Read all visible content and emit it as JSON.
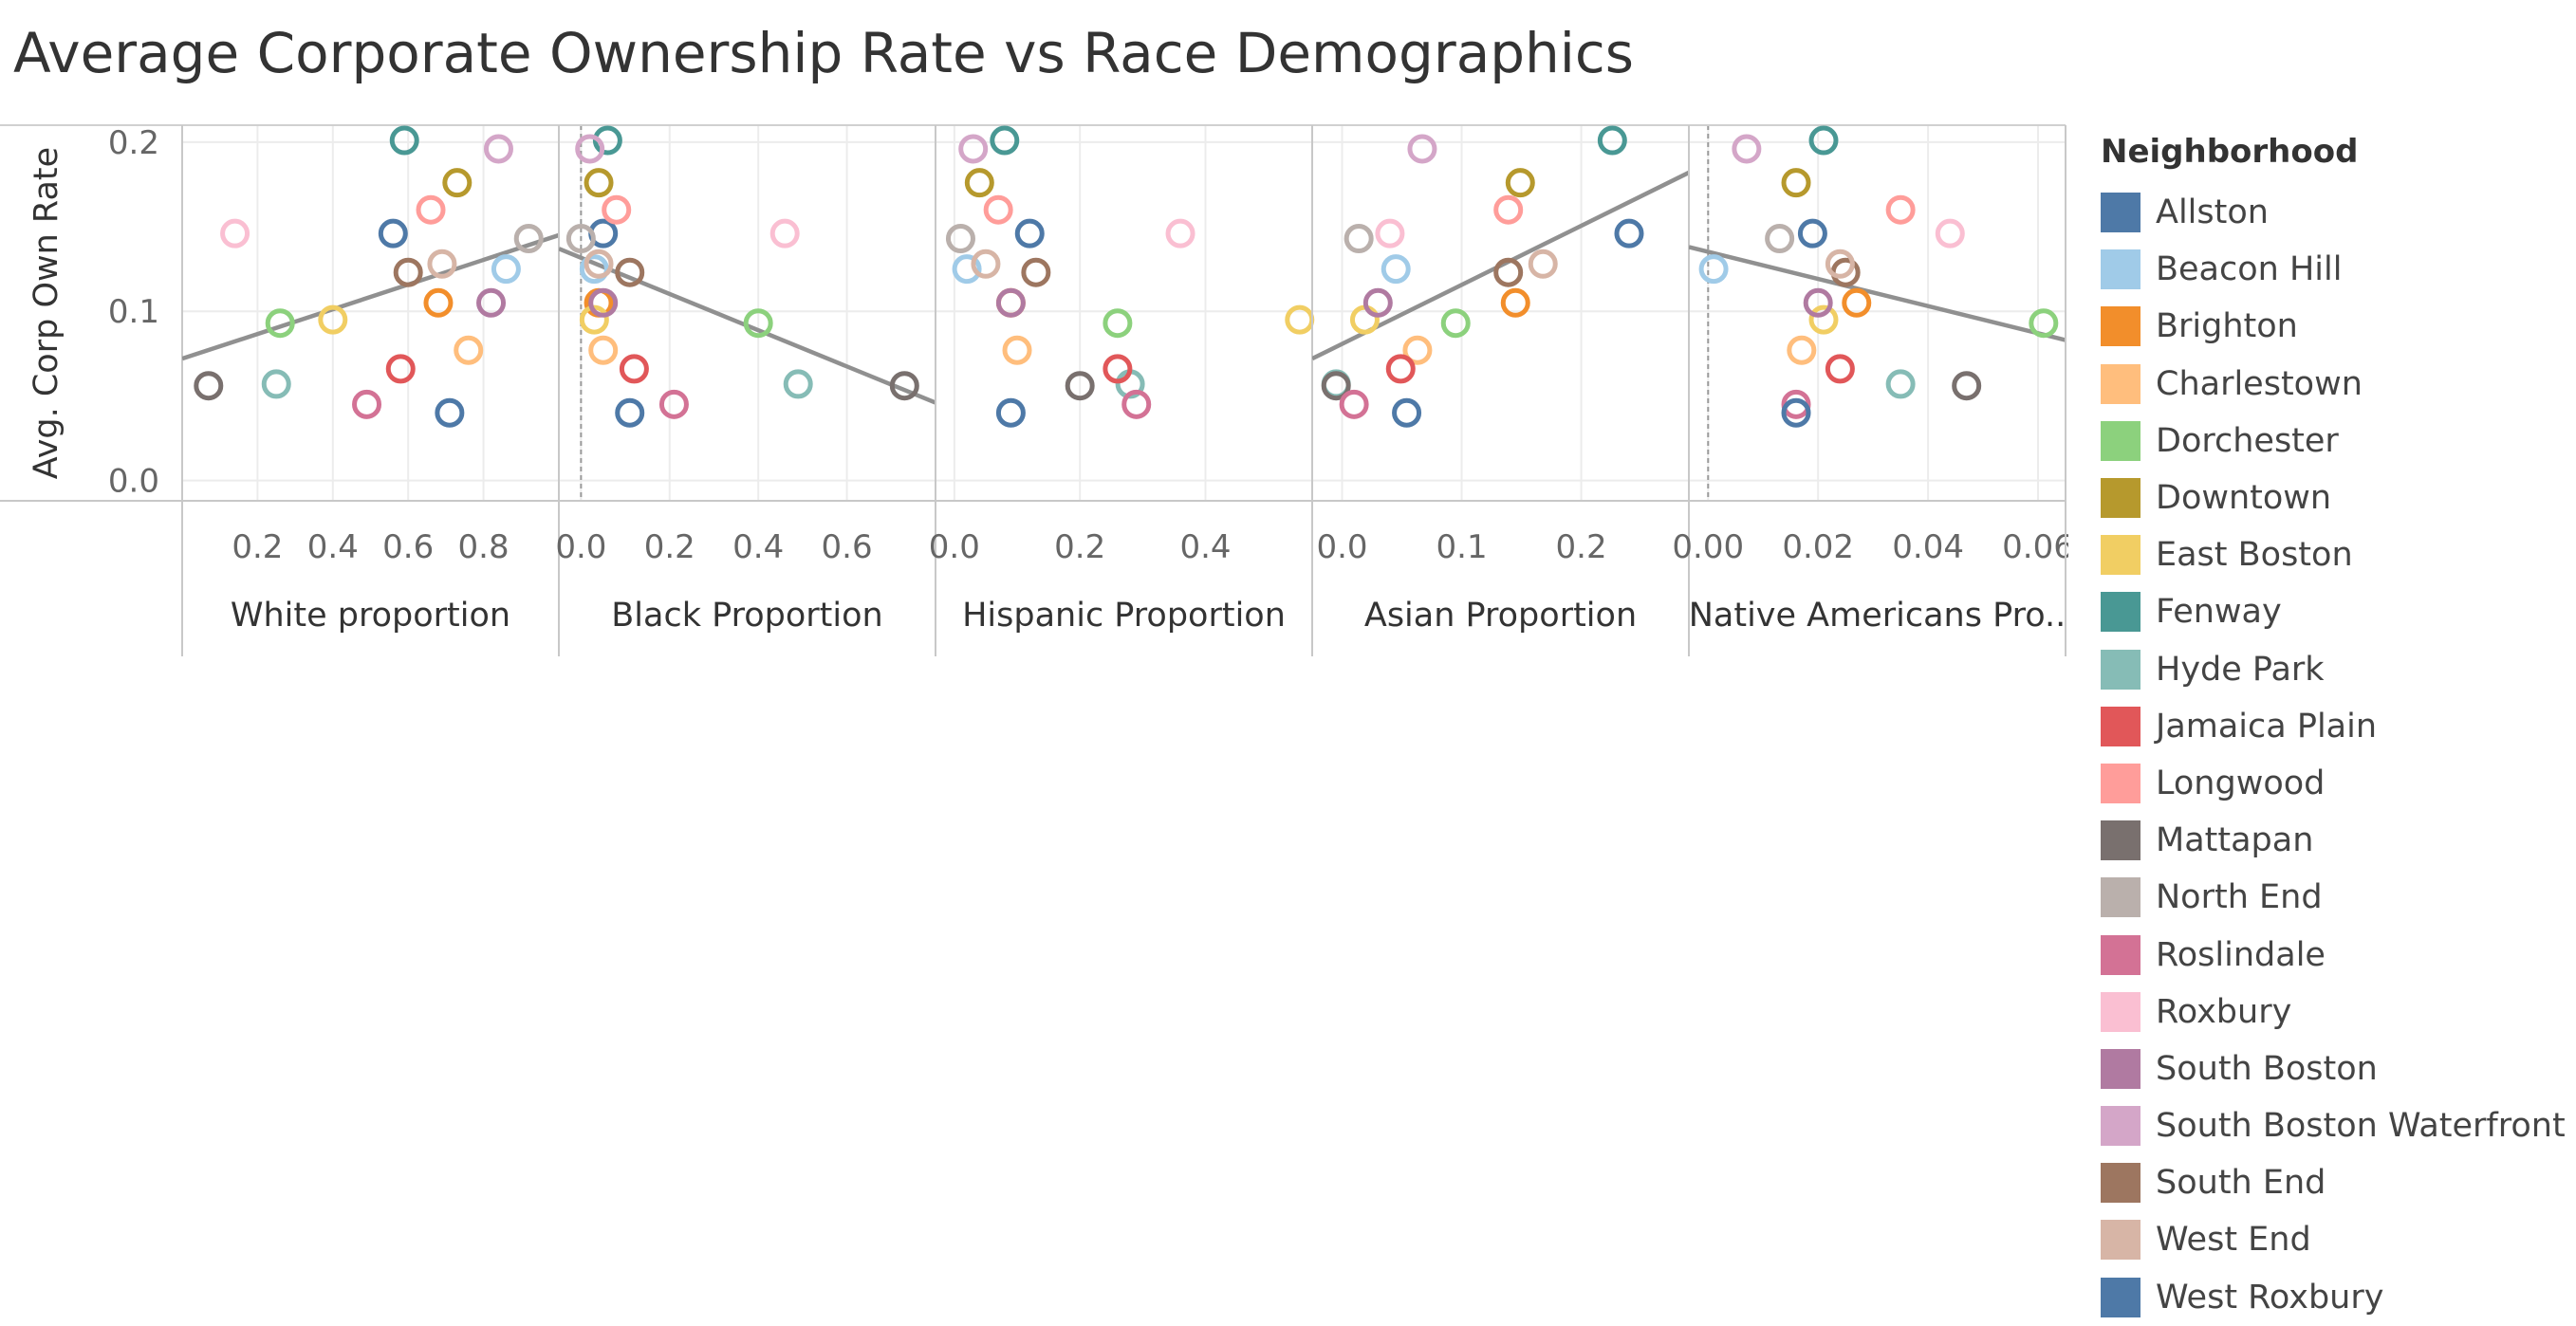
{
  "title": "Average Corporate Ownership Rate vs Race Demographics",
  "legend": {
    "title": "Neighborhood",
    "items": [
      {
        "label": "Allston",
        "color": "#4e79a7"
      },
      {
        "label": "Beacon Hill",
        "color": "#a0cbe8"
      },
      {
        "label": "Brighton",
        "color": "#f28e2b"
      },
      {
        "label": "Charlestown",
        "color": "#ffbe7d"
      },
      {
        "label": "Dorchester",
        "color": "#8cd17d"
      },
      {
        "label": "Downtown",
        "color": "#b6992d"
      },
      {
        "label": "East Boston",
        "color": "#f1ce63"
      },
      {
        "label": "Fenway",
        "color": "#499894"
      },
      {
        "label": "Hyde Park",
        "color": "#86bcb6"
      },
      {
        "label": "Jamaica Plain",
        "color": "#e15759"
      },
      {
        "label": "Longwood",
        "color": "#ff9d9a"
      },
      {
        "label": "Mattapan",
        "color": "#79706e"
      },
      {
        "label": "North End",
        "color": "#bab0ac"
      },
      {
        "label": "Roslindale",
        "color": "#d37295"
      },
      {
        "label": "Roxbury",
        "color": "#fabfd2"
      },
      {
        "label": "South Boston",
        "color": "#b07aa1"
      },
      {
        "label": "South Boston Waterfront",
        "color": "#d4a6c8"
      },
      {
        "label": "South End",
        "color": "#9d7660"
      },
      {
        "label": "West End",
        "color": "#d7b5a6"
      },
      {
        "label": "West Roxbury",
        "color": "#4e79a7"
      }
    ]
  },
  "chart_data": {
    "type": "scatter",
    "y_axis": {
      "label": "Avg. Corp Own Rate",
      "ticks": [
        "0.2",
        "0.1",
        "0.0"
      ],
      "tick_values": [
        0.2,
        0.1,
        0.0
      ],
      "ylim": [
        -0.012,
        0.21
      ]
    },
    "trend_lines": true,
    "panels": [
      {
        "xlabel": "White proportion",
        "xlim": [
          0.0,
          1.0
        ],
        "ticks": [
          "0.2",
          "0.4",
          "0.6",
          "0.8"
        ],
        "tick_values": [
          0.2,
          0.4,
          0.6,
          0.8
        ],
        "trend": [
          [
            0.0,
            0.072
          ],
          [
            1.0,
            0.145
          ]
        ],
        "points": [
          {
            "n": "Allston",
            "x": 0.56,
            "y": 0.146
          },
          {
            "n": "Beacon Hill",
            "x": 0.86,
            "y": 0.125
          },
          {
            "n": "Brighton",
            "x": 0.68,
            "y": 0.105
          },
          {
            "n": "Charlestown",
            "x": 0.76,
            "y": 0.077
          },
          {
            "n": "Dorchester",
            "x": 0.26,
            "y": 0.093
          },
          {
            "n": "Downtown",
            "x": 0.73,
            "y": 0.176
          },
          {
            "n": "East Boston",
            "x": 0.4,
            "y": 0.095
          },
          {
            "n": "Fenway",
            "x": 0.59,
            "y": 0.201
          },
          {
            "n": "Hyde Park",
            "x": 0.25,
            "y": 0.057
          },
          {
            "n": "Jamaica Plain",
            "x": 0.58,
            "y": 0.066
          },
          {
            "n": "Longwood",
            "x": 0.66,
            "y": 0.16
          },
          {
            "n": "Mattapan",
            "x": 0.07,
            "y": 0.056
          },
          {
            "n": "North End",
            "x": 0.92,
            "y": 0.143
          },
          {
            "n": "Roslindale",
            "x": 0.49,
            "y": 0.045
          },
          {
            "n": "Roxbury",
            "x": 0.14,
            "y": 0.146
          },
          {
            "n": "South Boston",
            "x": 0.82,
            "y": 0.105
          },
          {
            "n": "South Boston Waterfront",
            "x": 0.84,
            "y": 0.196
          },
          {
            "n": "South End",
            "x": 0.6,
            "y": 0.123
          },
          {
            "n": "West End",
            "x": 0.69,
            "y": 0.128
          },
          {
            "n": "West Roxbury",
            "x": 0.71,
            "y": 0.04
          }
        ]
      },
      {
        "xlabel": "Black Proportion",
        "xlim": [
          -0.05,
          0.8
        ],
        "ticks": [
          "0.0",
          "0.2",
          "0.4",
          "0.6"
        ],
        "tick_values": [
          0.0,
          0.2,
          0.4,
          0.6
        ],
        "zero_line": 0.0,
        "trend": [
          [
            -0.05,
            0.137
          ],
          [
            0.8,
            0.046
          ]
        ],
        "points": [
          {
            "n": "Allston",
            "x": 0.05,
            "y": 0.146
          },
          {
            "n": "Beacon Hill",
            "x": 0.03,
            "y": 0.125
          },
          {
            "n": "Brighton",
            "x": 0.04,
            "y": 0.105
          },
          {
            "n": "Charlestown",
            "x": 0.05,
            "y": 0.077
          },
          {
            "n": "Dorchester",
            "x": 0.4,
            "y": 0.093
          },
          {
            "n": "Downtown",
            "x": 0.04,
            "y": 0.176
          },
          {
            "n": "East Boston",
            "x": 0.03,
            "y": 0.095
          },
          {
            "n": "Fenway",
            "x": 0.06,
            "y": 0.201
          },
          {
            "n": "Hyde Park",
            "x": 0.49,
            "y": 0.057
          },
          {
            "n": "Jamaica Plain",
            "x": 0.12,
            "y": 0.066
          },
          {
            "n": "Longwood",
            "x": 0.08,
            "y": 0.16
          },
          {
            "n": "Mattapan",
            "x": 0.73,
            "y": 0.056
          },
          {
            "n": "North End",
            "x": 0.0,
            "y": 0.143
          },
          {
            "n": "Roslindale",
            "x": 0.21,
            "y": 0.045
          },
          {
            "n": "Roxbury",
            "x": 0.46,
            "y": 0.146
          },
          {
            "n": "South Boston",
            "x": 0.05,
            "y": 0.105
          },
          {
            "n": "South Boston Waterfront",
            "x": 0.02,
            "y": 0.196
          },
          {
            "n": "South End",
            "x": 0.11,
            "y": 0.123
          },
          {
            "n": "West End",
            "x": 0.04,
            "y": 0.128
          },
          {
            "n": "West Roxbury",
            "x": 0.11,
            "y": 0.04
          }
        ]
      },
      {
        "xlabel": "Hispanic Proportion",
        "xlim": [
          -0.03,
          0.57
        ],
        "ticks": [
          "0.0",
          "0.2",
          "0.4"
        ],
        "tick_values": [
          0.0,
          0.2,
          0.4
        ],
        "trend": null,
        "points": [
          {
            "n": "Allston",
            "x": 0.12,
            "y": 0.146
          },
          {
            "n": "Beacon Hill",
            "x": 0.02,
            "y": 0.125
          },
          {
            "n": "Brighton",
            "x": 0.09,
            "y": 0.105
          },
          {
            "n": "Charlestown",
            "x": 0.1,
            "y": 0.077
          },
          {
            "n": "Dorchester",
            "x": 0.26,
            "y": 0.093
          },
          {
            "n": "Downtown",
            "x": 0.04,
            "y": 0.176
          },
          {
            "n": "East Boston",
            "x": 0.55,
            "y": 0.095
          },
          {
            "n": "Fenway",
            "x": 0.08,
            "y": 0.201
          },
          {
            "n": "Hyde Park",
            "x": 0.28,
            "y": 0.057
          },
          {
            "n": "Jamaica Plain",
            "x": 0.26,
            "y": 0.066
          },
          {
            "n": "Longwood",
            "x": 0.07,
            "y": 0.16
          },
          {
            "n": "Mattapan",
            "x": 0.2,
            "y": 0.056
          },
          {
            "n": "North End",
            "x": 0.01,
            "y": 0.143
          },
          {
            "n": "Roslindale",
            "x": 0.29,
            "y": 0.045
          },
          {
            "n": "Roxbury",
            "x": 0.36,
            "y": 0.146
          },
          {
            "n": "South Boston",
            "x": 0.09,
            "y": 0.105
          },
          {
            "n": "South Boston Waterfront",
            "x": 0.03,
            "y": 0.196
          },
          {
            "n": "South End",
            "x": 0.13,
            "y": 0.123
          },
          {
            "n": "West End",
            "x": 0.05,
            "y": 0.128
          },
          {
            "n": "West Roxbury",
            "x": 0.09,
            "y": 0.04
          }
        ]
      },
      {
        "xlabel": "Asian Proportion",
        "xlim": [
          -0.025,
          0.29
        ],
        "ticks": [
          "0.0",
          "0.1",
          "0.2"
        ],
        "tick_values": [
          0.0,
          0.1,
          0.2
        ],
        "trend": [
          [
            -0.025,
            0.072
          ],
          [
            0.29,
            0.182
          ]
        ],
        "points": [
          {
            "n": "Allston",
            "x": 0.24,
            "y": 0.146
          },
          {
            "n": "Beacon Hill",
            "x": 0.045,
            "y": 0.125
          },
          {
            "n": "Brighton",
            "x": 0.145,
            "y": 0.105
          },
          {
            "n": "Charlestown",
            "x": 0.063,
            "y": 0.077
          },
          {
            "n": "Dorchester",
            "x": 0.095,
            "y": 0.093
          },
          {
            "n": "Downtown",
            "x": 0.149,
            "y": 0.176
          },
          {
            "n": "East Boston",
            "x": 0.019,
            "y": 0.095
          },
          {
            "n": "Fenway",
            "x": 0.226,
            "y": 0.201
          },
          {
            "n": "Hyde Park",
            "x": -0.005,
            "y": 0.057
          },
          {
            "n": "Jamaica Plain",
            "x": 0.049,
            "y": 0.066
          },
          {
            "n": "Longwood",
            "x": 0.139,
            "y": 0.16
          },
          {
            "n": "Mattapan",
            "x": -0.005,
            "y": 0.056
          },
          {
            "n": "North End",
            "x": 0.014,
            "y": 0.143
          },
          {
            "n": "Roslindale",
            "x": 0.01,
            "y": 0.045
          },
          {
            "n": "Roxbury",
            "x": 0.04,
            "y": 0.146
          },
          {
            "n": "South Boston",
            "x": 0.03,
            "y": 0.105
          },
          {
            "n": "South Boston Waterfront",
            "x": 0.067,
            "y": 0.196
          },
          {
            "n": "South End",
            "x": 0.139,
            "y": 0.123
          },
          {
            "n": "West End",
            "x": 0.168,
            "y": 0.128
          },
          {
            "n": "West Roxbury",
            "x": 0.054,
            "y": 0.04
          }
        ]
      },
      {
        "xlabel": "Native Americans Pro..",
        "xlim": [
          -0.0035,
          0.065
        ],
        "ticks": [
          "0.00",
          "0.02",
          "0.04",
          "0.06"
        ],
        "tick_values": [
          0.0,
          0.02,
          0.04,
          0.06
        ],
        "zero_line": 0.0,
        "trend": [
          [
            -0.0035,
            0.138
          ],
          [
            0.065,
            0.083
          ]
        ],
        "points": [
          {
            "n": "Allston",
            "x": 0.019,
            "y": 0.146
          },
          {
            "n": "Beacon Hill",
            "x": 0.001,
            "y": 0.125
          },
          {
            "n": "Brighton",
            "x": 0.027,
            "y": 0.105
          },
          {
            "n": "Charlestown",
            "x": 0.017,
            "y": 0.077
          },
          {
            "n": "Dorchester",
            "x": 0.061,
            "y": 0.093
          },
          {
            "n": "Downtown",
            "x": 0.016,
            "y": 0.176
          },
          {
            "n": "East Boston",
            "x": 0.021,
            "y": 0.095
          },
          {
            "n": "Fenway",
            "x": 0.021,
            "y": 0.201
          },
          {
            "n": "Hyde Park",
            "x": 0.035,
            "y": 0.057
          },
          {
            "n": "Jamaica Plain",
            "x": 0.024,
            "y": 0.066
          },
          {
            "n": "Longwood",
            "x": 0.035,
            "y": 0.16
          },
          {
            "n": "Mattapan",
            "x": 0.047,
            "y": 0.056
          },
          {
            "n": "North End",
            "x": 0.013,
            "y": 0.143
          },
          {
            "n": "Roslindale",
            "x": 0.016,
            "y": 0.045
          },
          {
            "n": "Roxbury",
            "x": 0.044,
            "y": 0.146
          },
          {
            "n": "South Boston",
            "x": 0.02,
            "y": 0.105
          },
          {
            "n": "South Boston Waterfront",
            "x": 0.007,
            "y": 0.196
          },
          {
            "n": "South End",
            "x": 0.025,
            "y": 0.123
          },
          {
            "n": "West End",
            "x": 0.024,
            "y": 0.128
          },
          {
            "n": "West Roxbury",
            "x": 0.016,
            "y": 0.04
          }
        ]
      }
    ]
  }
}
